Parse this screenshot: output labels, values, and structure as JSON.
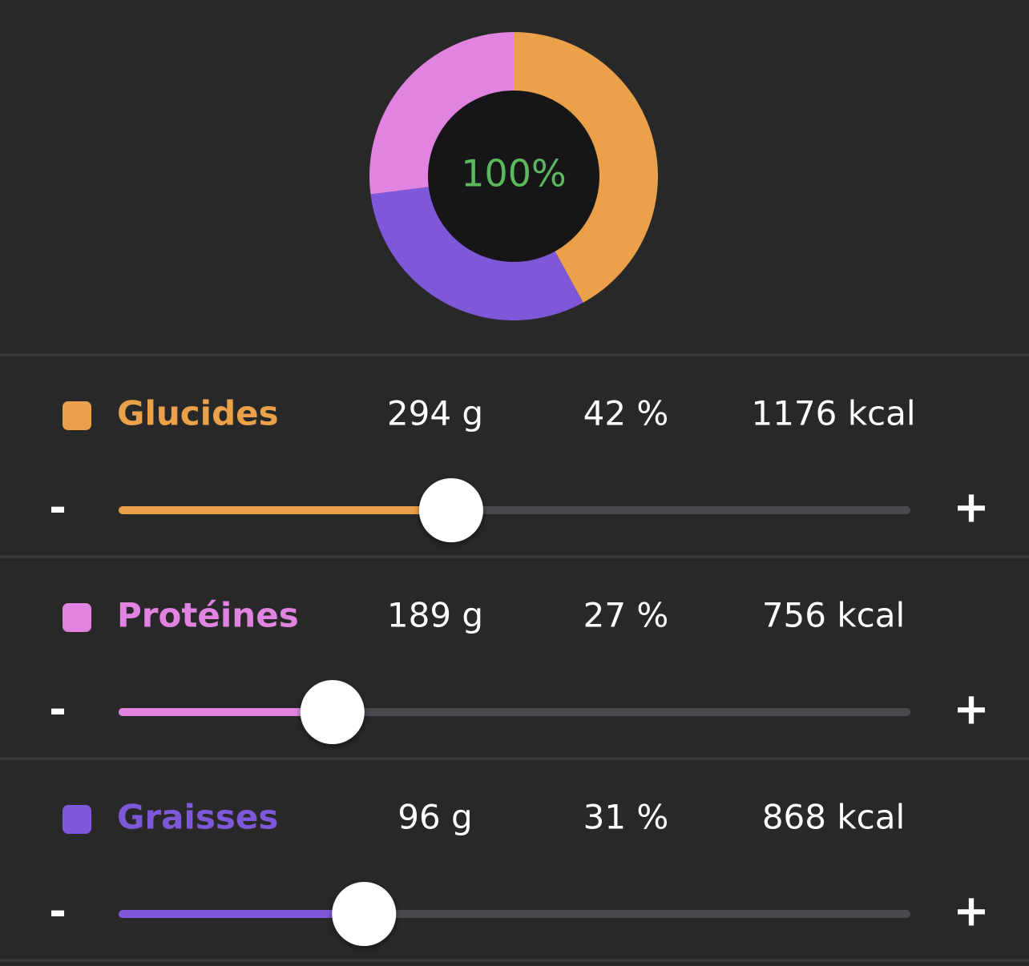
{
  "summary": {
    "total": "100%"
  },
  "controls": {
    "decrease": "-",
    "increase": "+"
  },
  "rows": [
    {
      "name": "Glucides",
      "color": "#eba04a",
      "grams": "294 g",
      "percent": {
        "value": 42,
        "label": "42 %"
      },
      "kcal": "1176 kcal"
    },
    {
      "name": "Protéines",
      "color": "#e183e0",
      "grams": "189 g",
      "percent": {
        "value": 27,
        "label": "27 %"
      },
      "kcal": "756 kcal"
    },
    {
      "name": "Graisses",
      "color": "#7f57d9",
      "grams": "96 g",
      "percent": {
        "value": 31,
        "label": "31 %"
      },
      "kcal": "868 kcal"
    }
  ]
}
